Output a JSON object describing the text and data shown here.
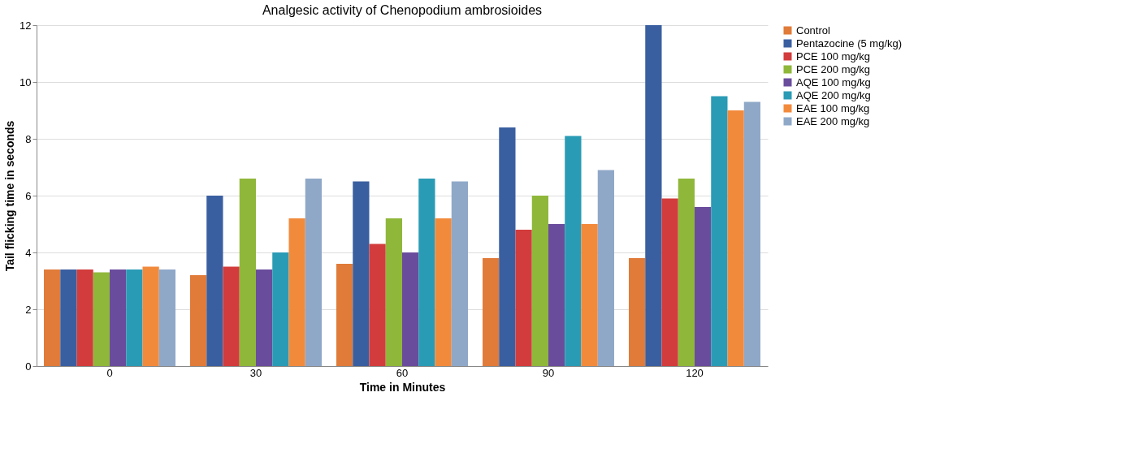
{
  "chart_data": {
    "type": "bar",
    "title": "Analgesic activity of Chenopodium ambrosioides",
    "xlabel": "Time in Minutes",
    "ylabel": "Tail flicking time in seconds",
    "categories": [
      "0",
      "30",
      "60",
      "90",
      "120"
    ],
    "series": [
      {
        "name": "Control",
        "color": "#e07b39",
        "values": [
          3.4,
          3.2,
          3.6,
          3.8,
          3.8
        ]
      },
      {
        "name": "Pentazocine (5 mg/kg)",
        "color": "#3a5fa0",
        "values": [
          3.4,
          6.0,
          6.5,
          8.4,
          12.0
        ]
      },
      {
        "name": "PCE 100 mg/kg",
        "color": "#d23c3c",
        "values": [
          3.4,
          3.5,
          4.3,
          4.8,
          5.9
        ]
      },
      {
        "name": "PCE 200 mg/kg",
        "color": "#8fb73a",
        "values": [
          3.3,
          6.6,
          5.2,
          6.0,
          6.6
        ]
      },
      {
        "name": "AQE 100 mg/kg",
        "color": "#6a4c9c",
        "values": [
          3.4,
          3.4,
          4.0,
          5.0,
          5.6
        ]
      },
      {
        "name": "AQE 200 mg/kg",
        "color": "#2a9bb5",
        "values": [
          3.4,
          4.0,
          6.6,
          8.1,
          9.5
        ]
      },
      {
        "name": "EAE 100 mg/kg",
        "color": "#f28a3c",
        "values": [
          3.5,
          5.2,
          5.2,
          5.0,
          9.0
        ]
      },
      {
        "name": "EAE 200 mg/kg",
        "color": "#8fa8c8",
        "values": [
          3.4,
          6.6,
          6.5,
          6.9,
          9.3
        ]
      }
    ],
    "ylim": [
      0,
      12
    ],
    "yticks": [
      0,
      2,
      4,
      6,
      8,
      10,
      12
    ],
    "grid": "y",
    "legend": "right"
  }
}
